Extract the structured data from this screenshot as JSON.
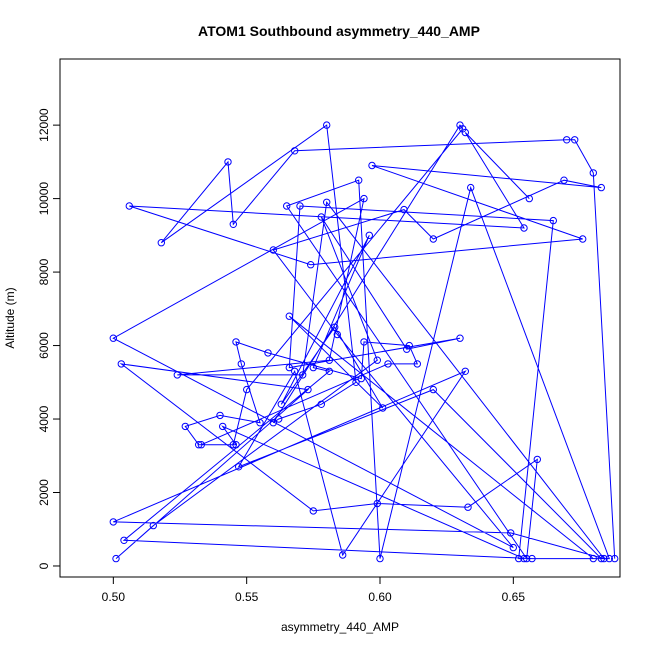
{
  "chart_data": {
    "type": "line",
    "title": "ATOM1 Southbound asymmetry_440_AMP",
    "xlabel": "asymmetry_440_AMP",
    "ylabel": "Altitude (m)",
    "xlim": [
      0.48,
      0.69
    ],
    "ylim": [
      -300,
      13800
    ],
    "xticks": [
      0.5,
      0.55,
      0.6,
      0.65
    ],
    "xtick_labels": [
      "0.50",
      "0.55",
      "0.60",
      "0.65"
    ],
    "yticks": [
      0,
      2000,
      4000,
      6000,
      8000,
      10000,
      12000
    ],
    "ytick_labels": [
      "0",
      "2000",
      "4000",
      "6000",
      "8000",
      "10000",
      "12000"
    ],
    "markers": "open-circle",
    "grid": false,
    "legend": "none",
    "color": "#0000ff",
    "series": [
      {
        "x": [
          0.688,
          0.68,
          0.673,
          0.67,
          0.568,
          0.545,
          0.543,
          0.518,
          0.58,
          0.591,
          0.578,
          0.562,
          0.56,
          0.63,
          0.631,
          0.55,
          0.545,
          0.532,
          0.527,
          0.54,
          0.555,
          0.548,
          0.546,
          0.558,
          0.593,
          0.594,
          0.611,
          0.614,
          0.603,
          0.533,
          0.546,
          0.541,
          0.654,
          0.652,
          0.665,
          0.57,
          0.566,
          0.63,
          0.61,
          0.578,
          0.599,
          0.515,
          0.501,
          0.573,
          0.503,
          0.575,
          0.599,
          0.633,
          0.659,
          0.655,
          0.565,
          0.592,
          0.6,
          0.634,
          0.686,
          0.68,
          0.566,
          0.601,
          0.583,
          0.563,
          0.596,
          0.575,
          0.581,
          0.504,
          0.657,
          0.683,
          0.62,
          0.547,
          0.568,
          0.586,
          0.632,
          0.5,
          0.649,
          0.684,
          0.58,
          0.571,
          0.524,
          0.581,
          0.594,
          0.5,
          0.65,
          0.584,
          0.56,
          0.609,
          0.62,
          0.669,
          0.683,
          0.597,
          0.676,
          0.574,
          0.506,
          0.654,
          0.632,
          0.656
        ],
        "y": [
          200,
          10700,
          11600,
          11600,
          11300,
          9300,
          11000,
          8800,
          12000,
          5000,
          4400,
          4000,
          3900,
          12000,
          11900,
          4800,
          3300,
          3300,
          3800,
          4100,
          3900,
          5500,
          6100,
          5800,
          5100,
          6100,
          6000,
          5500,
          5500,
          3300,
          3300,
          3800,
          200,
          200,
          9400,
          9800,
          5400,
          6200,
          5900,
          9500,
          5600,
          1100,
          200,
          4800,
          5500,
          1500,
          1700,
          1600,
          2900,
          200,
          9800,
          10500,
          200,
          10300,
          200,
          200,
          6800,
          4300,
          6500,
          4400,
          9000,
          5400,
          5300,
          700,
          200,
          200,
          4800,
          2700,
          5300,
          300,
          5300,
          1200,
          900,
          200,
          9900,
          5200,
          5200,
          5600,
          10000,
          6200,
          500,
          6300,
          8600,
          9700,
          8900,
          10500,
          10300,
          10900,
          8900,
          8200,
          9800,
          9200,
          11800,
          10000
        ]
      }
    ]
  }
}
